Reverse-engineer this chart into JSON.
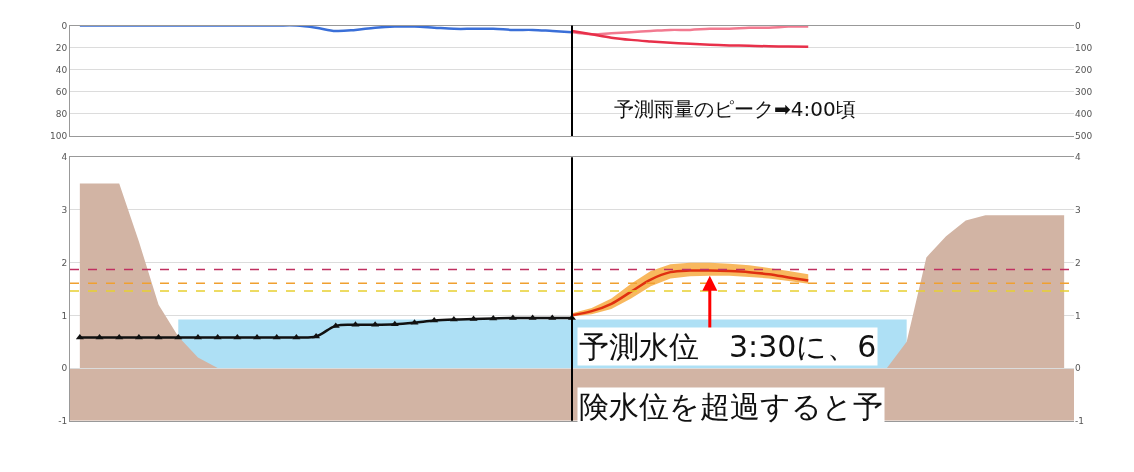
{
  "chart_data": [
    {
      "type": "line",
      "categories": [
        null,
        null,
        null,
        null,
        null,
        null,
        null,
        null,
        null,
        null,
        null,
        null,
        null,
        null,
        null,
        null,
        null,
        null,
        null,
        null,
        null,
        null,
        null,
        null,
        null,
        null,
        null,
        null,
        null,
        null,
        null,
        null,
        null,
        null,
        null,
        null,
        null,
        null,
        null,
        null,
        null,
        null,
        null,
        null,
        null,
        null,
        null,
        null,
        null,
        null,
        null
      ],
      "ylim": [
        100,
        0
      ],
      "yticks": [
        0,
        20,
        40,
        60,
        80,
        100
      ],
      "y2lim": [
        500,
        0
      ],
      "y2ticks": [
        0,
        100,
        200,
        300,
        400,
        500
      ],
      "grid": true,
      "series": [
        {
          "color": "#3a6fd8",
          "values": [
            0,
            0,
            0,
            0,
            0,
            0,
            0,
            0,
            0,
            0,
            0,
            0,
            2,
            5,
            4,
            2,
            1,
            1,
            2,
            3,
            3,
            3,
            4,
            4,
            5,
            6,
            null,
            null,
            null,
            null,
            null,
            null,
            null,
            null,
            null,
            null,
            null,
            null,
            null,
            null,
            null,
            null,
            null,
            null,
            null,
            null,
            null,
            null,
            null,
            null,
            null
          ]
        },
        {
          "color": "#f27a90",
          "values": [
            null,
            null,
            null,
            null,
            null,
            null,
            null,
            null,
            null,
            null,
            null,
            null,
            null,
            null,
            null,
            null,
            null,
            null,
            null,
            null,
            null,
            null,
            null,
            null,
            null,
            6,
            8,
            7,
            6,
            5,
            4,
            4,
            3,
            3,
            2,
            2,
            1,
            1,
            null,
            null,
            null,
            null,
            null,
            null,
            null,
            null,
            null,
            null,
            null,
            null,
            null
          ]
        },
        {
          "color": "#e8304a",
          "axis": "y2",
          "values": [
            null,
            null,
            null,
            null,
            null,
            null,
            null,
            null,
            null,
            null,
            null,
            null,
            null,
            null,
            null,
            null,
            null,
            null,
            null,
            null,
            null,
            null,
            null,
            null,
            null,
            25,
            40,
            55,
            65,
            72,
            78,
            83,
            87,
            90,
            92,
            94,
            95,
            96,
            null,
            null,
            null,
            null,
            null,
            null,
            null,
            null,
            null,
            null,
            null,
            null,
            null
          ]
        }
      ],
      "annotations": [
        "予測雨量のピーク➡4:00頃"
      ]
    },
    {
      "type": "line",
      "categories": [
        null,
        null,
        null,
        null,
        null,
        null,
        null,
        null,
        null,
        null,
        null,
        null,
        null,
        null,
        null,
        null,
        null,
        null,
        null,
        null,
        null,
        null,
        null,
        null,
        null,
        null,
        null,
        null,
        null,
        null,
        null,
        null,
        null,
        null,
        null,
        null,
        null,
        null,
        null,
        null,
        null,
        null,
        null,
        null,
        null,
        null,
        null,
        null,
        null,
        null,
        null
      ],
      "ylim": [
        -1,
        4
      ],
      "yticks": [
        -1,
        0,
        1,
        2,
        3,
        4
      ],
      "y2lim": [
        -1,
        4
      ],
      "y2ticks": [
        -1,
        0,
        1,
        2,
        3,
        4
      ],
      "grid": true,
      "series": [
        {
          "type": "area",
          "color": "#aee0f5",
          "values": [
            null,
            null,
            null,
            null,
            null,
            0.92,
            0.92,
            0.92,
            0.92,
            0.92,
            0.92,
            0.92,
            0.92,
            0.92,
            0.92,
            0.92,
            0.92,
            0.92,
            0.92,
            0.92,
            0.92,
            0.92,
            0.92,
            0.92,
            0.92,
            0.92,
            0.92,
            0.92,
            0.92,
            0.92,
            0.92,
            0.92,
            0.92,
            0.92,
            0.92,
            0.92,
            0.92,
            0.92,
            0.92,
            0.92,
            0.92,
            0.92,
            0.92,
            null,
            null,
            null,
            null,
            null,
            null,
            null,
            null
          ]
        },
        {
          "type": "area",
          "color": "#d2b4a4",
          "values": [
            3.5,
            3.5,
            3.5,
            2.4,
            1.2,
            0.6,
            0.2,
            0,
            0,
            0,
            0,
            0,
            0,
            0,
            0,
            0,
            0,
            0,
            0,
            0,
            0,
            0,
            0,
            0,
            0,
            0,
            0,
            0,
            0,
            0,
            0,
            0,
            0,
            0,
            0,
            0,
            0,
            0,
            0,
            0,
            0,
            0,
            0.5,
            2.1,
            2.5,
            2.8,
            2.9,
            2.9,
            2.9,
            2.9,
            2.9
          ]
        },
        {
          "color": "#111111",
          "marker": "triangle",
          "values": [
            0.58,
            0.58,
            0.58,
            0.58,
            0.58,
            0.58,
            0.58,
            0.58,
            0.58,
            0.58,
            0.58,
            0.58,
            0.6,
            0.8,
            0.82,
            0.82,
            0.83,
            0.86,
            0.9,
            0.92,
            0.93,
            0.94,
            0.95,
            0.95,
            0.95,
            0.95,
            null,
            null,
            null,
            null,
            null,
            null,
            null,
            null,
            null,
            null,
            null,
            null,
            null,
            null,
            null,
            null,
            null,
            null,
            null,
            null,
            null,
            null,
            null,
            null,
            null
          ]
        },
        {
          "color": "#e03010",
          "values": [
            null,
            null,
            null,
            null,
            null,
            null,
            null,
            null,
            null,
            null,
            null,
            null,
            null,
            null,
            null,
            null,
            null,
            null,
            null,
            null,
            null,
            null,
            null,
            null,
            null,
            1.0,
            1.08,
            1.22,
            1.45,
            1.68,
            1.82,
            1.85,
            1.85,
            1.84,
            1.82,
            1.78,
            1.72,
            1.66,
            null,
            null,
            null,
            null,
            null,
            null,
            null,
            null,
            null,
            null,
            null,
            null,
            null
          ],
          "lower": [
            null,
            null,
            null,
            null,
            null,
            null,
            null,
            null,
            null,
            null,
            null,
            null,
            null,
            null,
            null,
            null,
            null,
            null,
            null,
            null,
            null,
            null,
            null,
            null,
            null,
            0.98,
            1.02,
            1.12,
            1.32,
            1.55,
            1.7,
            1.74,
            1.75,
            1.75,
            1.73,
            1.7,
            1.65,
            1.6,
            null,
            null,
            null,
            null,
            null,
            null,
            null,
            null,
            null,
            null,
            null,
            null,
            null
          ],
          "upper": [
            null,
            null,
            null,
            null,
            null,
            null,
            null,
            null,
            null,
            null,
            null,
            null,
            null,
            null,
            null,
            null,
            null,
            null,
            null,
            null,
            null,
            null,
            null,
            null,
            null,
            1.04,
            1.14,
            1.32,
            1.6,
            1.84,
            1.97,
            2.0,
            2.0,
            1.98,
            1.95,
            1.9,
            1.84,
            1.78,
            null,
            null,
            null,
            null,
            null,
            null,
            null,
            null,
            null,
            null,
            null,
            null,
            null
          ]
        }
      ],
      "ref_lines": [
        {
          "axis": "y",
          "value": 1.87,
          "color": "#c03060",
          "line_style": "dashed"
        },
        {
          "axis": "y",
          "value": 1.61,
          "color": "#f0a030",
          "line_style": "dashed"
        },
        {
          "axis": "y",
          "value": 1.46,
          "color": "#e8d030",
          "line_style": "dashed"
        }
      ],
      "bands": [
        {
          "axis": "y",
          "from": -1,
          "to": 0,
          "color": "#d2b4a4"
        }
      ],
      "annotations": [
        "予測水位　3:30に、6",
        "険水位を超過すると予"
      ]
    }
  ]
}
